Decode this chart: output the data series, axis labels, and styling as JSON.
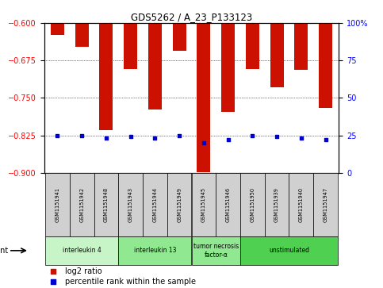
{
  "title": "GDS5262 / A_23_P133123",
  "samples": [
    "GSM1151941",
    "GSM1151942",
    "GSM1151948",
    "GSM1151943",
    "GSM1151944",
    "GSM1151949",
    "GSM1151945",
    "GSM1151946",
    "GSM1151950",
    "GSM1151939",
    "GSM1151940",
    "GSM1151947"
  ],
  "log2_values": [
    -0.623,
    -0.648,
    -0.815,
    -0.692,
    -0.773,
    -0.655,
    -0.898,
    -0.778,
    -0.692,
    -0.728,
    -0.693,
    -0.77
  ],
  "percentile_ranks": [
    25,
    25,
    23,
    24,
    23,
    25,
    20,
    22,
    25,
    24,
    23,
    22
  ],
  "groups": [
    {
      "label": "interleukin 4",
      "start": 0,
      "end": 3,
      "color": "#c8f5c8"
    },
    {
      "label": "interleukin 13",
      "start": 3,
      "end": 6,
      "color": "#90e890"
    },
    {
      "label": "tumor necrosis\nfactor-α",
      "start": 6,
      "end": 8,
      "color": "#90e890"
    },
    {
      "label": "unstimulated",
      "start": 8,
      "end": 12,
      "color": "#50d050"
    }
  ],
  "ylim_left": [
    -0.9,
    -0.6
  ],
  "yticks_left": [
    -0.9,
    -0.825,
    -0.75,
    -0.675,
    -0.6
  ],
  "ylim_right": [
    0,
    100
  ],
  "yticks_right": [
    0,
    25,
    50,
    75,
    100
  ],
  "bar_color": "#cc1100",
  "dot_color": "#0000cc",
  "bar_width": 0.55,
  "label_area_color": "#d0d0d0"
}
